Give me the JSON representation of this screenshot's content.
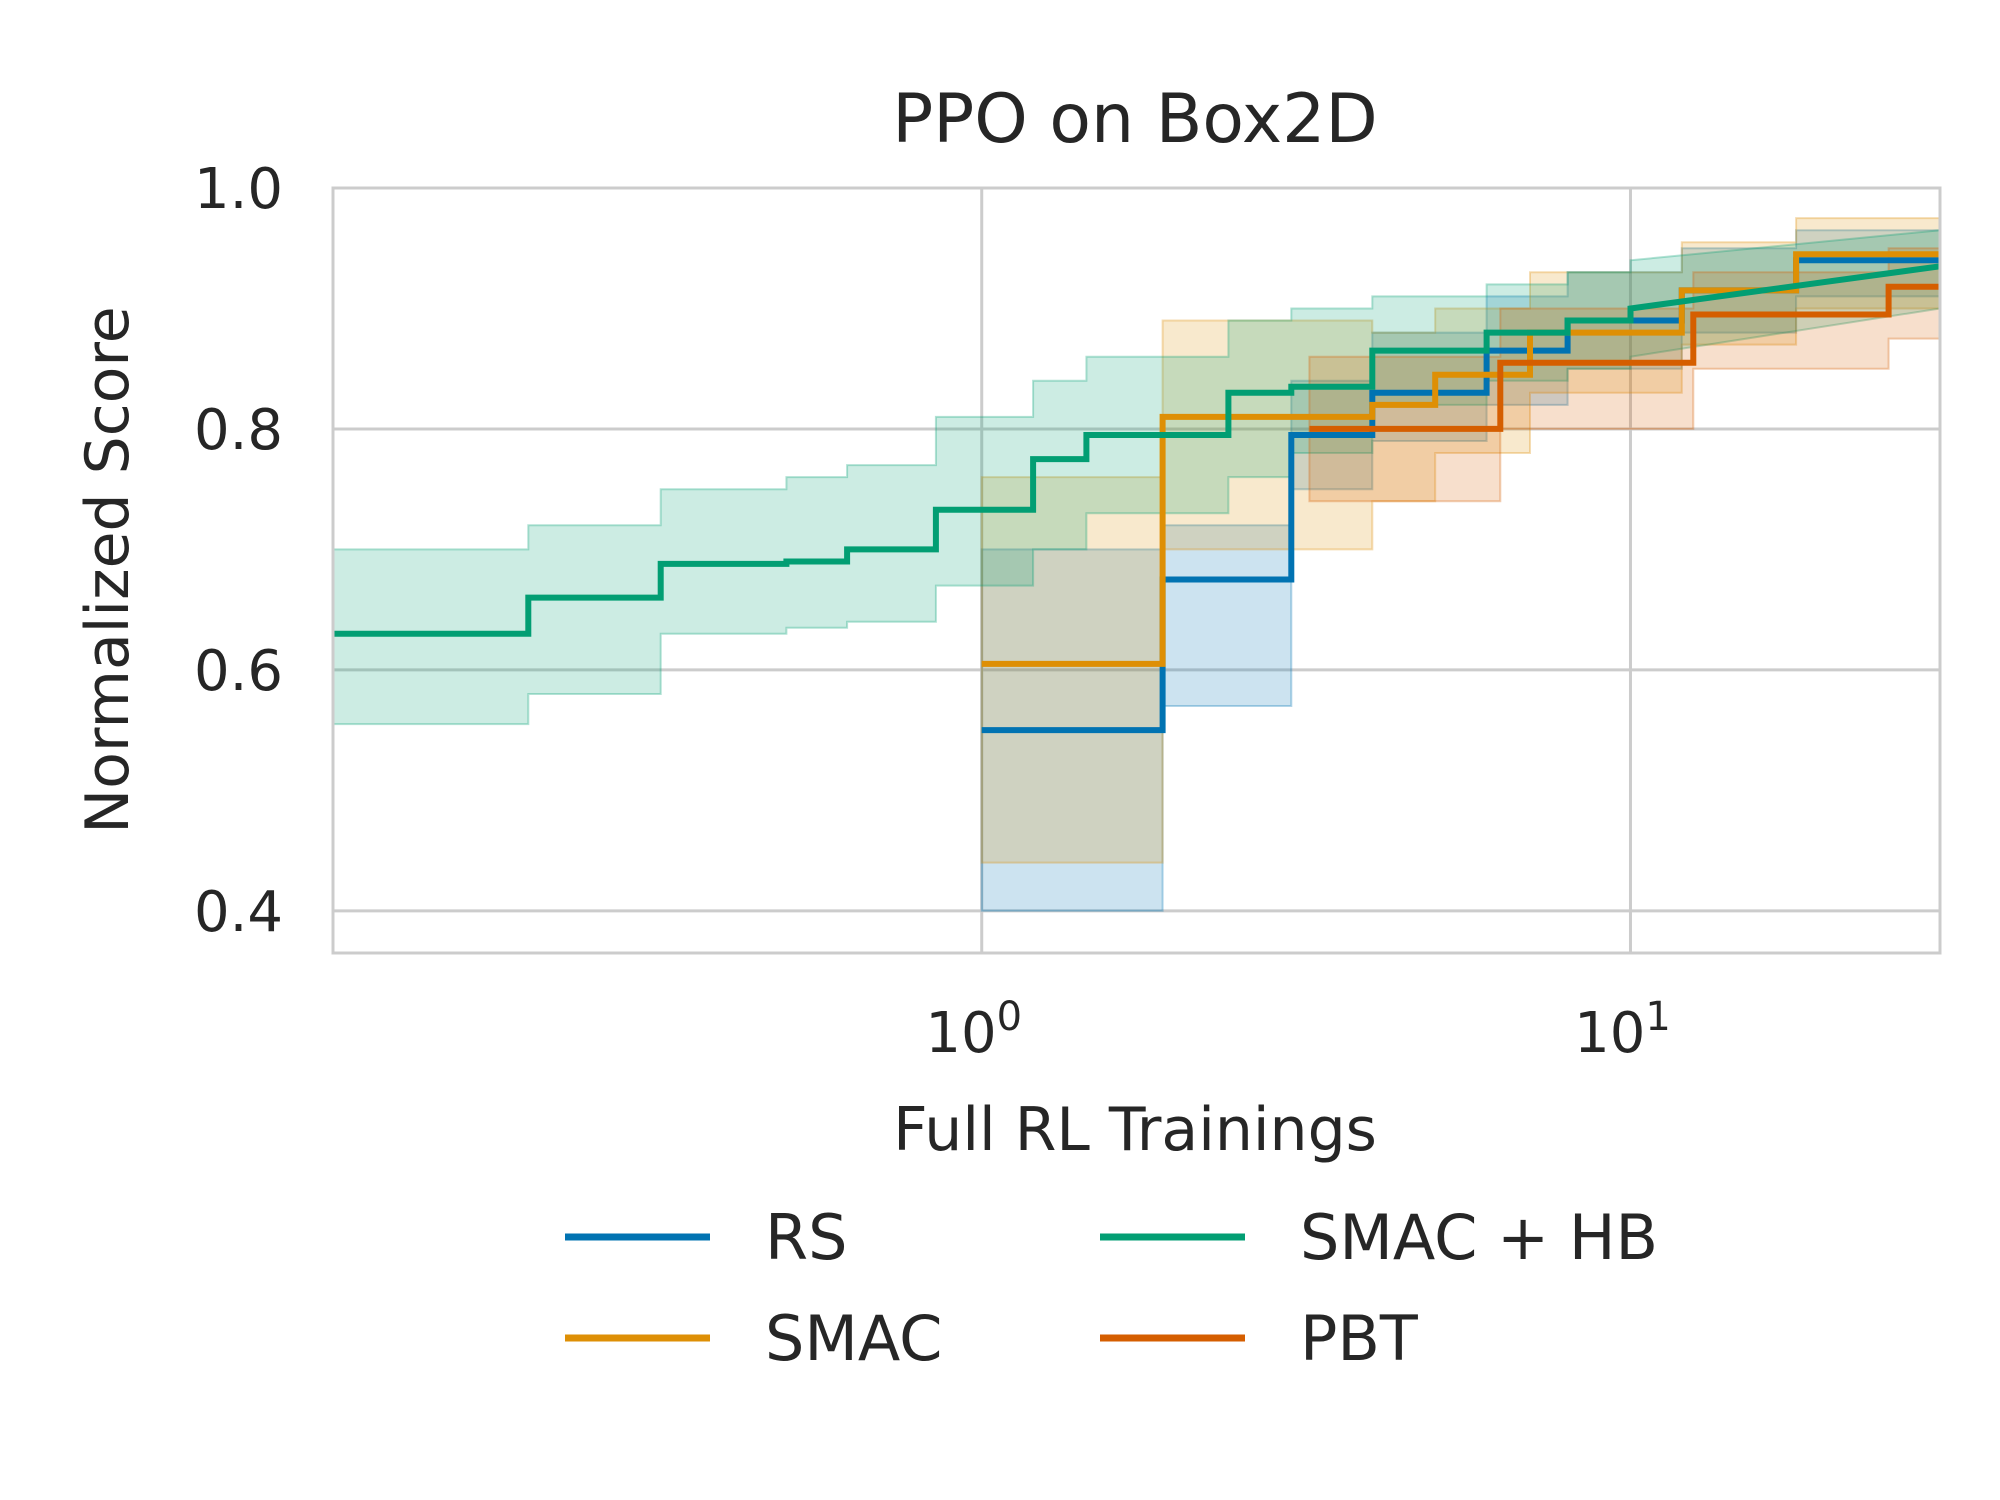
{
  "chart_data": {
    "type": "line",
    "title": "PPO on Box2D",
    "xlabel": "Full RL Trainings",
    "ylabel": "Normalized Score",
    "xscale": "log",
    "xlim": [
      0.1,
      30
    ],
    "ylim": [
      0.365,
      1.0
    ],
    "x_ticks": [
      {
        "base": "10",
        "exp": "0",
        "value": 1
      },
      {
        "base": "10",
        "exp": "1",
        "value": 10
      }
    ],
    "y_ticks": [
      {
        "label": "0.4",
        "value": 0.4
      },
      {
        "label": "0.6",
        "value": 0.6
      },
      {
        "label": "0.8",
        "value": 0.8
      },
      {
        "label": "1.0",
        "value": 1.0
      }
    ],
    "grid": true,
    "legend": {
      "placement": "below",
      "columns": 2
    },
    "series": [
      {
        "name": "RS",
        "color": "#0173b2",
        "x": [
          1.0,
          1.9,
          1.9,
          3.0,
          3.0,
          4.0,
          4.0,
          6.0,
          6.0,
          8.0,
          8.0,
          12.0,
          12.0,
          18.0,
          18.0,
          30.0
        ],
        "y": [
          0.55,
          0.55,
          0.675,
          0.675,
          0.795,
          0.795,
          0.83,
          0.83,
          0.865,
          0.865,
          0.89,
          0.89,
          0.915,
          0.915,
          0.94,
          0.94
        ],
        "upper": [
          0.7,
          0.7,
          0.72,
          0.72,
          0.84,
          0.84,
          0.88,
          0.88,
          0.91,
          0.91,
          0.93,
          0.93,
          0.95,
          0.95,
          0.965,
          0.965
        ],
        "lower": [
          0.4,
          0.4,
          0.57,
          0.57,
          0.75,
          0.75,
          0.79,
          0.79,
          0.82,
          0.82,
          0.85,
          0.85,
          0.88,
          0.88,
          0.91,
          0.91
        ]
      },
      {
        "name": "SMAC",
        "color": "#de8f05",
        "x": [
          1.0,
          1.9,
          1.9,
          4.0,
          4.0,
          5.0,
          5.0,
          7.0,
          7.0,
          12.0,
          12.0,
          18.0,
          18.0,
          30.0
        ],
        "y": [
          0.605,
          0.605,
          0.81,
          0.81,
          0.82,
          0.82,
          0.845,
          0.845,
          0.88,
          0.88,
          0.915,
          0.915,
          0.945,
          0.945
        ],
        "upper": [
          0.76,
          0.76,
          0.89,
          0.89,
          0.88,
          0.88,
          0.9,
          0.9,
          0.93,
          0.93,
          0.955,
          0.955,
          0.975,
          0.975
        ],
        "lower": [
          0.44,
          0.44,
          0.7,
          0.7,
          0.74,
          0.74,
          0.78,
          0.78,
          0.83,
          0.83,
          0.87,
          0.87,
          0.9,
          0.9
        ]
      },
      {
        "name": "SMAC + HB",
        "color": "#029e73",
        "x": [
          0.1,
          0.2,
          0.2,
          0.32,
          0.32,
          0.5,
          0.5,
          0.62,
          0.62,
          0.85,
          0.85,
          1.2,
          1.2,
          1.45,
          1.45,
          2.4,
          2.4,
          3.0,
          3.0,
          4.0,
          4.0,
          6.0,
          6.0,
          8.0,
          8.0,
          10.0,
          10.0,
          30.0
        ],
        "y": [
          0.63,
          0.63,
          0.66,
          0.66,
          0.688,
          0.688,
          0.69,
          0.69,
          0.7,
          0.7,
          0.733,
          0.733,
          0.775,
          0.775,
          0.795,
          0.795,
          0.83,
          0.83,
          0.835,
          0.835,
          0.865,
          0.865,
          0.88,
          0.88,
          0.89,
          0.89,
          0.9,
          0.935
        ],
        "upper": [
          0.7,
          0.7,
          0.72,
          0.72,
          0.75,
          0.75,
          0.76,
          0.76,
          0.77,
          0.77,
          0.81,
          0.81,
          0.84,
          0.84,
          0.86,
          0.86,
          0.89,
          0.89,
          0.9,
          0.9,
          0.91,
          0.91,
          0.92,
          0.92,
          0.93,
          0.93,
          0.94,
          0.965
        ],
        "lower": [
          0.555,
          0.555,
          0.58,
          0.58,
          0.63,
          0.63,
          0.635,
          0.635,
          0.64,
          0.64,
          0.67,
          0.67,
          0.7,
          0.7,
          0.73,
          0.73,
          0.76,
          0.76,
          0.78,
          0.78,
          0.82,
          0.82,
          0.84,
          0.84,
          0.85,
          0.85,
          0.86,
          0.9
        ]
      },
      {
        "name": "PBT",
        "color": "#d55e00",
        "x": [
          3.2,
          6.3,
          6.3,
          12.5,
          12.5,
          25.0,
          25.0,
          30.0
        ],
        "y": [
          0.8,
          0.8,
          0.855,
          0.855,
          0.895,
          0.895,
          0.918,
          0.918
        ],
        "upper": [
          0.86,
          0.86,
          0.9,
          0.9,
          0.93,
          0.93,
          0.95,
          0.95
        ],
        "lower": [
          0.74,
          0.74,
          0.8,
          0.8,
          0.85,
          0.85,
          0.875,
          0.875
        ]
      }
    ]
  }
}
